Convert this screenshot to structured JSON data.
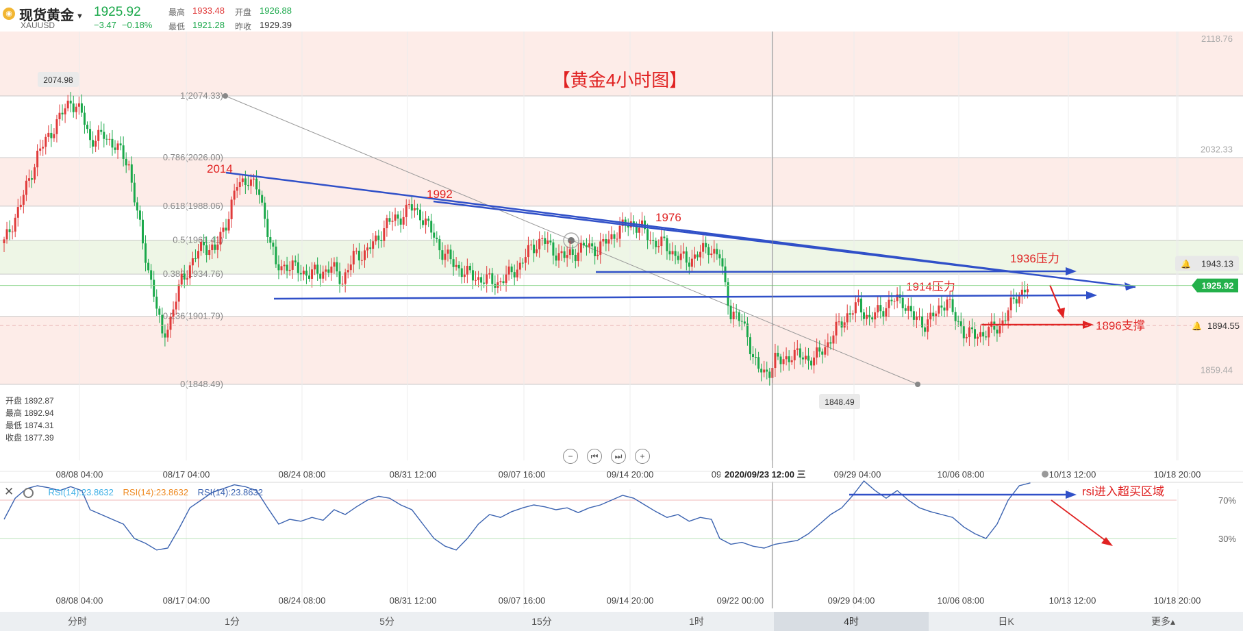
{
  "header": {
    "name": "现货黄金",
    "symbol": "XAUUSD",
    "price": "1925.92",
    "change": "−3.47",
    "change_pct": "−0.18%",
    "high_label": "最高",
    "high": "1933.48",
    "low_label": "最低",
    "low": "1921.28",
    "open_label": "开盘",
    "open": "1926.88",
    "prev_label": "昨收",
    "prev": "1929.39"
  },
  "ohlc": {
    "open": "开盘 1892.87",
    "high": "最高 1892.94",
    "low": "最低 1874.31",
    "close": "收盘 1877.39"
  },
  "tabs": [
    "分时",
    "1分",
    "5分",
    "15分",
    "1时",
    "4时",
    "日K",
    "更多▴"
  ],
  "active_tab": "4时",
  "rsi_legend": [
    "RSI(14):23.8632",
    "RSI(14):23.8632",
    "RSI(14):23.8632"
  ],
  "colors": {
    "up": "#e03a3a",
    "down": "#1aa84a",
    "trend": "#3050c8",
    "annot": "#e02222",
    "rsi_line": "#3a62b0",
    "rsi1": "#3fb0e6",
    "rsi2": "#ef8a22",
    "rsi3": "#3a62b0"
  },
  "chart_data": [
    {
      "type": "candlestick",
      "title": "【黄金4小时图】",
      "ylim": [
        1820,
        2135
      ],
      "y_right_ticks": [
        "2118.76",
        "2032.33",
        "1859.44"
      ],
      "current_price_label": "1925.92",
      "alert_labels": [
        "1943.13",
        "1894.55"
      ],
      "x_tick_labels": [
        "08/08 04:00",
        "08/17 04:00",
        "08/24 08:00",
        "08/31 12:00",
        "09/07 16:00",
        "09/14 20:00",
        "09",
        "09/29 04:00",
        "10/06 08:00",
        "10/13 12:00",
        "10/18 20:00"
      ],
      "crosshair_label": "2020/09/23 12:00 三",
      "fib_levels": [
        {
          "label": "1(2074.33)",
          "value": 2074.33
        },
        {
          "label": "0.786(2026.00)",
          "value": 2026.0
        },
        {
          "label": "0.618(1988.06)",
          "value": 1988.06
        },
        {
          "label": "0.5(1961.41)",
          "value": 1961.41
        },
        {
          "label": "0.382(1934.76)",
          "value": 1934.76
        },
        {
          "label": "0.236(1901.79)",
          "value": 1901.79
        },
        {
          "label": "0(1848.49)",
          "value": 1848.49
        }
      ],
      "extreme_labels": [
        "2074.98",
        "1848.49"
      ],
      "annotations": [
        "2014",
        "1992",
        "1976",
        "1936压力",
        "1914压力",
        "1896支撑"
      ],
      "path": [
        [
          0,
          1959
        ],
        [
          6,
          1990
        ],
        [
          12,
          2028
        ],
        [
          18,
          2050
        ],
        [
          24,
          2071
        ],
        [
          28,
          2060
        ],
        [
          31,
          2040
        ],
        [
          36,
          2043
        ],
        [
          40,
          2036
        ],
        [
          45,
          2020
        ],
        [
          50,
          1958
        ],
        [
          54,
          1920
        ],
        [
          57,
          1885
        ],
        [
          60,
          1900
        ],
        [
          64,
          1930
        ],
        [
          68,
          1945
        ],
        [
          72,
          1958
        ],
        [
          76,
          1953
        ],
        [
          80,
          1975
        ],
        [
          84,
          2004
        ],
        [
          88,
          2010
        ],
        [
          92,
          1998
        ],
        [
          95,
          1970
        ],
        [
          98,
          1940
        ],
        [
          102,
          1942
        ],
        [
          106,
          1938
        ],
        [
          110,
          1935
        ],
        [
          114,
          1936
        ],
        [
          118,
          1940
        ],
        [
          122,
          1930
        ],
        [
          126,
          1948
        ],
        [
          130,
          1952
        ],
        [
          134,
          1960
        ],
        [
          138,
          1975
        ],
        [
          142,
          1978
        ],
        [
          146,
          1987
        ],
        [
          150,
          1982
        ],
        [
          154,
          1968
        ],
        [
          158,
          1952
        ],
        [
          162,
          1943
        ],
        [
          166,
          1936
        ],
        [
          170,
          1932
        ],
        [
          174,
          1930
        ],
        [
          178,
          1928
        ],
        [
          182,
          1934
        ],
        [
          186,
          1942
        ],
        [
          190,
          1955
        ],
        [
          194,
          1962
        ],
        [
          198,
          1953
        ],
        [
          202,
          1948
        ],
        [
          206,
          1952
        ],
        [
          210,
          1957
        ],
        [
          214,
          1954
        ],
        [
          218,
          1962
        ],
        [
          222,
          1970
        ],
        [
          226,
          1975
        ],
        [
          230,
          1970
        ],
        [
          234,
          1960
        ],
        [
          238,
          1958
        ],
        [
          242,
          1950
        ],
        [
          246,
          1945
        ],
        [
          250,
          1950
        ],
        [
          254,
          1956
        ],
        [
          258,
          1948
        ],
        [
          260,
          1925
        ],
        [
          262,
          1905
        ],
        [
          264,
          1902
        ],
        [
          266,
          1896
        ],
        [
          268,
          1888
        ],
        [
          270,
          1870
        ],
        [
          272,
          1860
        ],
        [
          274,
          1857
        ],
        [
          276,
          1860
        ],
        [
          278,
          1868
        ],
        [
          280,
          1866
        ],
        [
          284,
          1872
        ],
        [
          288,
          1870
        ],
        [
          292,
          1868
        ],
        [
          296,
          1878
        ],
        [
          300,
          1891
        ],
        [
          304,
          1903
        ],
        [
          308,
          1910
        ],
        [
          312,
          1900
        ],
        [
          316,
          1906
        ],
        [
          320,
          1914
        ],
        [
          324,
          1914
        ],
        [
          328,
          1900
        ],
        [
          332,
          1896
        ],
        [
          336,
          1904
        ],
        [
          340,
          1916
        ],
        [
          342,
          1903
        ],
        [
          346,
          1890
        ],
        [
          350,
          1886
        ],
        [
          354,
          1890
        ],
        [
          358,
          1892
        ],
        [
          362,
          1906
        ],
        [
          366,
          1920
        ],
        [
          370,
          1926
        ]
      ],
      "trendlines": [
        "2014 → 1936压力 (falling resistance)",
        "1992 → 1936压力 (falling resistance)",
        "horizontal 1936压力",
        "horizontal 1914压力",
        "horizontal 1896支撑"
      ]
    },
    {
      "type": "line",
      "title": "RSI(14)",
      "ylim": [
        0,
        100
      ],
      "ticks": [
        "70%",
        "30%"
      ],
      "levels": [
        70,
        30
      ],
      "x_tick_labels": [
        "08/08 04:00",
        "08/17 04:00",
        "08/24 08:00",
        "08/31 12:00",
        "09/07 16:00",
        "09/14 20:00",
        "09/22 00:00",
        "09/29 04:00",
        "10/06 08:00",
        "10/13 12:00",
        "10/18 20:00"
      ],
      "annotation": "rsi进入超买区域",
      "values": [
        [
          0,
          50
        ],
        [
          4,
          72
        ],
        [
          8,
          82
        ],
        [
          12,
          85
        ],
        [
          16,
          83
        ],
        [
          20,
          80
        ],
        [
          24,
          84
        ],
        [
          28,
          80
        ],
        [
          31,
          60
        ],
        [
          35,
          55
        ],
        [
          39,
          50
        ],
        [
          43,
          45
        ],
        [
          47,
          30
        ],
        [
          51,
          25
        ],
        [
          55,
          18
        ],
        [
          59,
          20
        ],
        [
          63,
          40
        ],
        [
          67,
          62
        ],
        [
          71,
          70
        ],
        [
          75,
          78
        ],
        [
          79,
          82
        ],
        [
          83,
          86
        ],
        [
          87,
          84
        ],
        [
          91,
          80
        ],
        [
          95,
          62
        ],
        [
          99,
          45
        ],
        [
          103,
          50
        ],
        [
          107,
          48
        ],
        [
          111,
          52
        ],
        [
          115,
          49
        ],
        [
          119,
          60
        ],
        [
          123,
          55
        ],
        [
          127,
          63
        ],
        [
          131,
          70
        ],
        [
          135,
          74
        ],
        [
          139,
          72
        ],
        [
          143,
          65
        ],
        [
          147,
          60
        ],
        [
          151,
          45
        ],
        [
          155,
          30
        ],
        [
          159,
          22
        ],
        [
          163,
          18
        ],
        [
          167,
          30
        ],
        [
          171,
          45
        ],
        [
          175,
          55
        ],
        [
          179,
          52
        ],
        [
          183,
          58
        ],
        [
          187,
          62
        ],
        [
          191,
          65
        ],
        [
          195,
          63
        ],
        [
          199,
          60
        ],
        [
          203,
          62
        ],
        [
          207,
          57
        ],
        [
          211,
          62
        ],
        [
          215,
          65
        ],
        [
          219,
          70
        ],
        [
          223,
          75
        ],
        [
          227,
          72
        ],
        [
          231,
          65
        ],
        [
          235,
          58
        ],
        [
          239,
          52
        ],
        [
          243,
          55
        ],
        [
          247,
          48
        ],
        [
          251,
          52
        ],
        [
          255,
          50
        ],
        [
          258,
          30
        ],
        [
          262,
          24
        ],
        [
          266,
          26
        ],
        [
          270,
          22
        ],
        [
          274,
          20
        ],
        [
          278,
          24
        ],
        [
          282,
          26
        ],
        [
          286,
          28
        ],
        [
          290,
          35
        ],
        [
          294,
          45
        ],
        [
          298,
          55
        ],
        [
          302,
          62
        ],
        [
          306,
          75
        ],
        [
          310,
          90
        ],
        [
          314,
          80
        ],
        [
          318,
          72
        ],
        [
          322,
          80
        ],
        [
          326,
          70
        ],
        [
          330,
          62
        ],
        [
          334,
          58
        ],
        [
          338,
          55
        ],
        [
          342,
          52
        ],
        [
          346,
          42
        ],
        [
          350,
          35
        ],
        [
          354,
          30
        ],
        [
          358,
          45
        ],
        [
          362,
          70
        ],
        [
          366,
          85
        ],
        [
          370,
          88
        ]
      ]
    }
  ]
}
